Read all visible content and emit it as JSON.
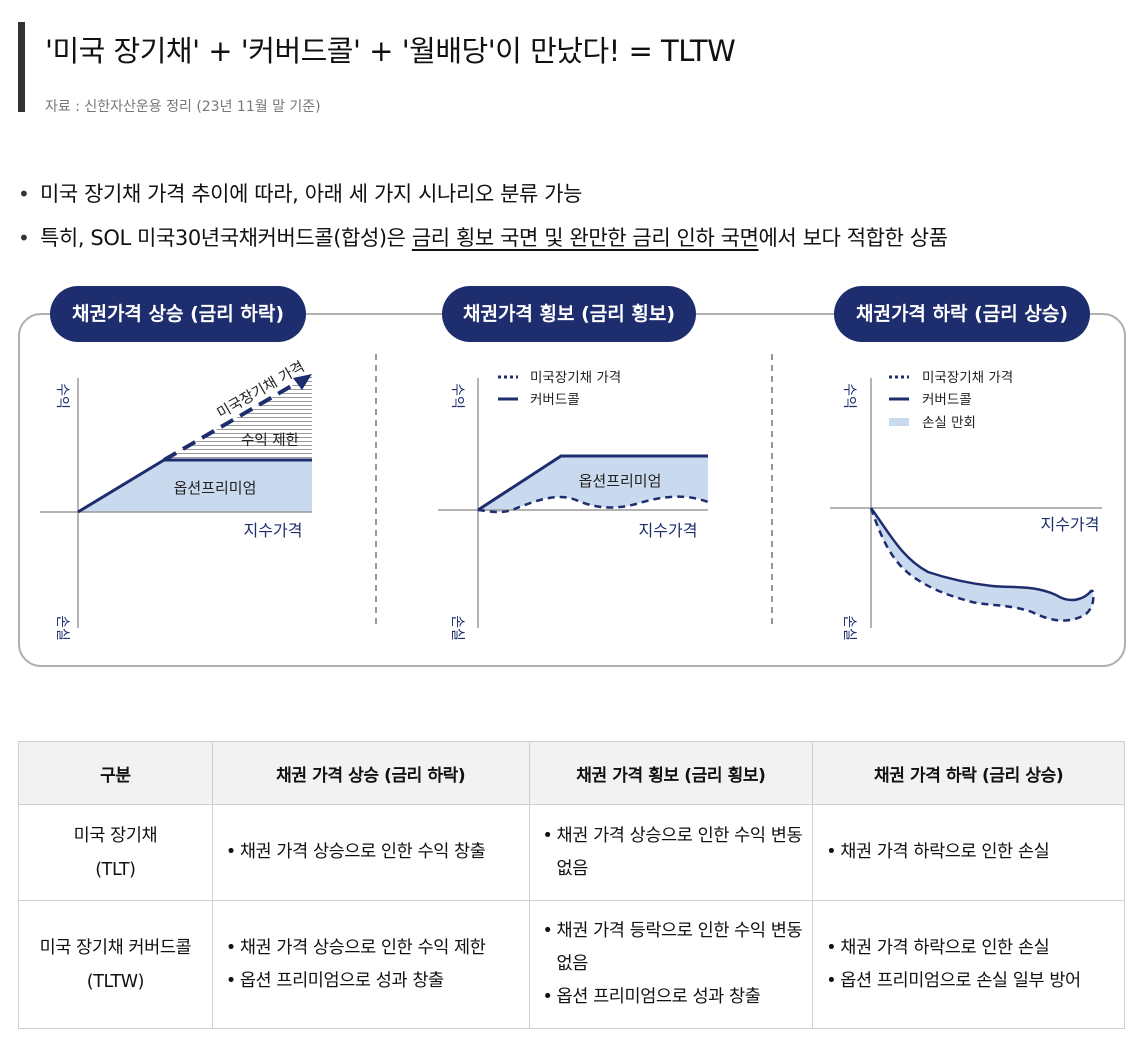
{
  "header": {
    "title": "'미국 장기채' + '커버드콜' + '월배당'이 만났다! = TLTW",
    "source": "자료 : 신한자산운용 정리 (23년 11월 말 기준)"
  },
  "bullets": [
    {
      "text": "미국 장기채 가격 추이에 따라, 아래 세 가지 시나리오 분류 가능"
    },
    {
      "pre": "특히, SOL 미국30년국채커버드콜(합성)은 ",
      "underlined": "금리 횡보 국면 및 완만한 금리 인하 국면",
      "post": "에서 보다 적합한 상품"
    }
  ],
  "diagram": {
    "colors": {
      "navy": "#1e2d6e",
      "fill": "#c9d9ee",
      "hatch": "#9a9a9a",
      "axis": "#9a9a9a",
      "frame": "#b0b0b0"
    },
    "y_top": "수익",
    "y_bottom": "손실",
    "x_label": "지수가격",
    "panels": [
      {
        "badge": "채권가격 상승 (금리 하락)",
        "diag_label": "미국장기채 가격",
        "cap_label": "수익 제한",
        "premium_label": "옵션프리미엄"
      },
      {
        "badge": "채권가격 횡보 (금리 횡보)",
        "legend_dotted": "미국장기채 가격",
        "legend_solid": "커버드콜",
        "premium_label": "옵션프리미엄"
      },
      {
        "badge": "채권가격 하락 (금리 상승)",
        "legend_dotted": "미국장기채 가격",
        "legend_solid": "커버드콜",
        "legend_fill": "손실 만회"
      }
    ]
  },
  "table": {
    "headers": [
      "구분",
      "채권 가격 상승 (금리 하락)",
      "채권 가격 횡보 (금리 횡보)",
      "채권 가격 하락 (금리 상승)"
    ],
    "rows": [
      {
        "name1": "미국 장기채",
        "name2": "(TLT)",
        "cells": [
          [
            "채권 가격 상승으로 인한 수익 창출"
          ],
          [
            "채권 가격 상승으로 인한 수익 변동 없음"
          ],
          [
            "채권 가격 하락으로 인한 손실"
          ]
        ]
      },
      {
        "name1": "미국 장기채 커버드콜",
        "name2": "(TLTW)",
        "cells": [
          [
            "채권 가격 상승으로 인한 수익 제한",
            "옵션 프리미엄으로 성과 창출"
          ],
          [
            "채권 가격 등락으로 인한 수익 변동 없음",
            "옵션 프리미엄으로 성과 창출"
          ],
          [
            "채권 가격 하락으로 인한 손실",
            "옵션 프리미엄으로 손실 일부 방어"
          ]
        ]
      }
    ]
  }
}
